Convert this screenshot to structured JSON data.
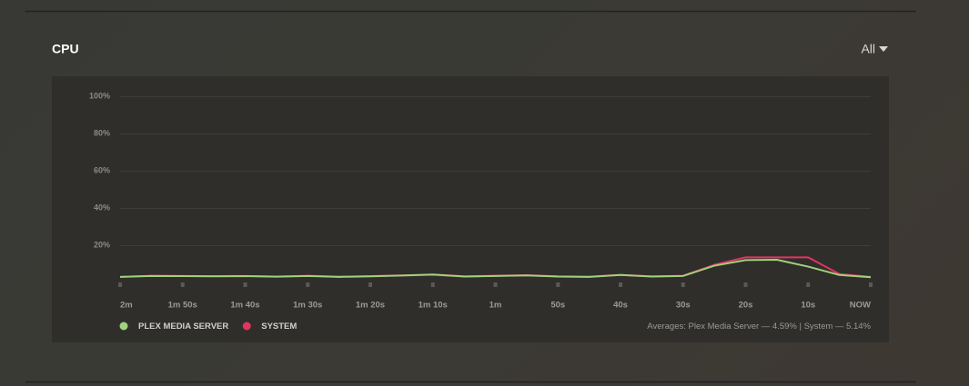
{
  "header": {
    "title": "CPU",
    "filter": "All"
  },
  "chart_data": {
    "type": "line",
    "x": [
      120,
      115,
      110,
      105,
      100,
      95,
      90,
      85,
      80,
      75,
      70,
      65,
      60,
      55,
      50,
      45,
      40,
      35,
      30,
      25,
      20,
      15,
      10,
      5,
      0
    ],
    "series": [
      {
        "name": "PLEX MEDIA SERVER",
        "color": "#9fd17f",
        "values": [
          3,
          3.5,
          3.4,
          3.3,
          3.4,
          3.1,
          3.5,
          3,
          3.3,
          3.7,
          4.2,
          3.2,
          3.5,
          3.8,
          3.2,
          3,
          4,
          3.2,
          3.5,
          9,
          12,
          12.2,
          8.5,
          4,
          2.8
        ]
      },
      {
        "name": "SYSTEM",
        "color": "#e2345f",
        "values": [
          3,
          3.6,
          3.5,
          3.4,
          3.5,
          3.2,
          3.6,
          3.1,
          3.4,
          3.8,
          4.3,
          3.3,
          3.6,
          3.9,
          3.3,
          3.1,
          4.1,
          3.3,
          3.6,
          9.5,
          13.5,
          13.5,
          13.5,
          4.5,
          3
        ]
      }
    ],
    "xlim": [
      120,
      0
    ],
    "xticks": [
      {
        "value": 120,
        "label": "2m"
      },
      {
        "value": 110,
        "label": "1m 50s"
      },
      {
        "value": 100,
        "label": "1m 40s"
      },
      {
        "value": 90,
        "label": "1m 30s"
      },
      {
        "value": 80,
        "label": "1m 20s"
      },
      {
        "value": 70,
        "label": "1m 10s"
      },
      {
        "value": 60,
        "label": "1m"
      },
      {
        "value": 50,
        "label": "50s"
      },
      {
        "value": 40,
        "label": "40s"
      },
      {
        "value": 30,
        "label": "30s"
      },
      {
        "value": 20,
        "label": "20s"
      },
      {
        "value": 10,
        "label": "10s"
      },
      {
        "value": 0,
        "label": "NOW"
      }
    ],
    "ylim": [
      0,
      100
    ],
    "yticks": [
      {
        "value": 20,
        "label": "20%"
      },
      {
        "value": 40,
        "label": "40%"
      },
      {
        "value": 60,
        "label": "60%"
      },
      {
        "value": 80,
        "label": "80%"
      },
      {
        "value": 100,
        "label": "100%"
      }
    ],
    "grid": true,
    "annotation": "Averages: Plex Media Server — 4.59% | System — 5.14%"
  }
}
